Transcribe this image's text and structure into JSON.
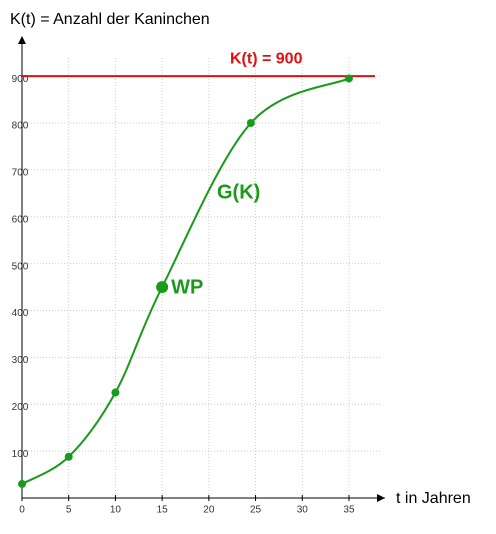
{
  "chart_data": {
    "type": "line",
    "y_label": "K(t) = Anzahl der Kaninchen",
    "x_label": "t in Jahren",
    "series": [
      {
        "name": "G(K)",
        "color": "#1a9a1a",
        "x": [
          0,
          5,
          10,
          15,
          24.5,
          35
        ],
        "values": [
          30,
          88,
          225,
          450,
          800,
          895
        ],
        "highlight": {
          "index": 3,
          "label": "WP"
        }
      }
    ],
    "hline": {
      "value": 900,
      "label": "K(t) = 900",
      "color": "#dd1111"
    },
    "xlim": [
      0,
      38
    ],
    "ylim": [
      0,
      960
    ],
    "xticks": [
      0,
      5,
      10,
      15,
      20,
      25,
      30,
      35
    ],
    "yticks": [
      100,
      200,
      300,
      400,
      500,
      600,
      700,
      800,
      900
    ],
    "grid": true
  }
}
